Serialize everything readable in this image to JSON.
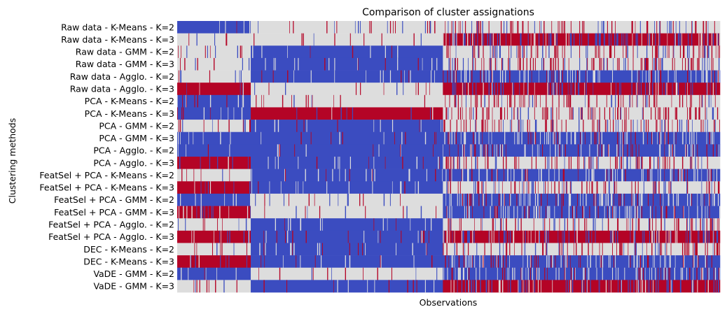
{
  "chart_data": {
    "type": "heatmap",
    "title": "Comparison of cluster assignations",
    "xlabel": "Observations",
    "ylabel": "Clustering methods",
    "colormap": "coolwarm",
    "colors": {
      "low": "#3b4cc0",
      "mid": "#dddddd",
      "high": "#b40426"
    },
    "value_range": [
      0,
      2
    ],
    "grid": false,
    "legend": "none",
    "rows": [
      "Raw data - K-Means - K=2",
      "Raw data - K-Means - K=3",
      "Raw data - GMM - K=2",
      "Raw data - GMM - K=3",
      "Raw data - Agglo. - K=2",
      "Raw data - Agglo. - K=3",
      "PCA - K-Means - K=2",
      "PCA - K-Means - K=3",
      "PCA - GMM - K=2",
      "PCA - GMM - K=3",
      "PCA - Agglo. - K=2",
      "PCA - Agglo. - K=3",
      "FeatSel + PCA - K-Means - K=2",
      "FeatSel + PCA - K-Means - K=3",
      "FeatSel + PCA - GMM - K=2",
      "FeatSel + PCA - GMM - K=3",
      "FeatSel + PCA - Agglo. - K=2",
      "FeatSel + PCA - Agglo. - K=3",
      "DEC - K-Means - K=2",
      "DEC - K-Means - K=3",
      "VaDE - GMM - K=2",
      "VaDE - GMM - K=3"
    ],
    "observation_groups": [
      {
        "share": 0.135,
        "dominant_cluster": [
          0,
          1,
          1,
          1,
          1,
          2,
          0,
          0,
          1,
          0,
          0,
          2,
          1,
          2,
          0,
          2,
          1,
          2,
          1,
          2,
          0,
          1
        ]
      },
      {
        "share": 0.355,
        "dominant_cluster": [
          1,
          1,
          0,
          0,
          0,
          1,
          1,
          2,
          0,
          0,
          0,
          0,
          0,
          0,
          1,
          1,
          0,
          0,
          0,
          0,
          1,
          0
        ]
      },
      {
        "share": 0.51,
        "dominant_cluster": [
          1,
          2,
          1,
          1,
          0,
          2,
          1,
          1,
          1,
          0,
          0,
          1,
          0,
          1,
          0,
          0,
          1,
          2,
          1,
          0,
          0,
          2
        ]
      }
    ]
  }
}
